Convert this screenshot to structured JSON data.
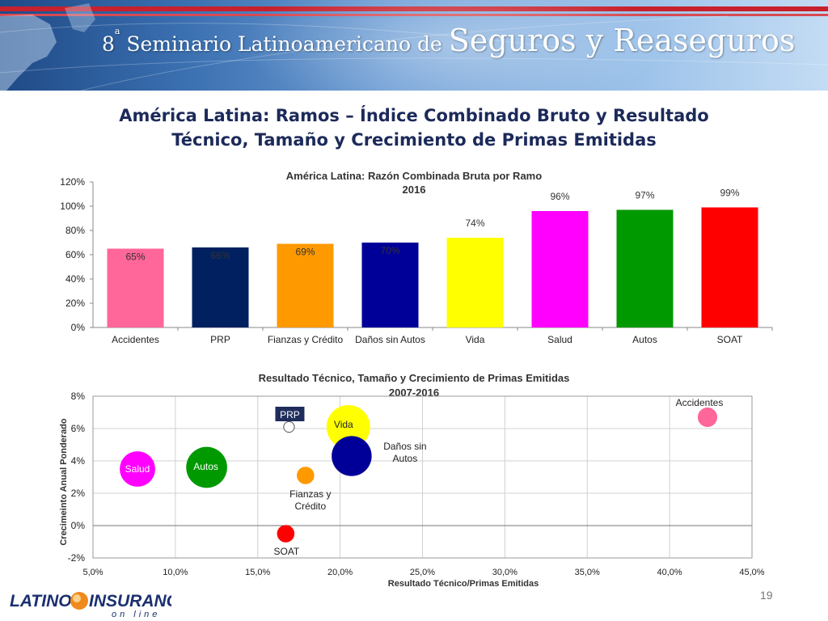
{
  "banner": {
    "title_num": "8",
    "title_sup": "a",
    "title_small": " Seminario Latinoamericano de ",
    "title_big": "Seguros y Reaseguros"
  },
  "slide": {
    "title_line1": "América Latina: Ramos – Índice Combinado Bruto y Resultado",
    "title_line2": "Técnico, Tamaño y Crecimiento de Primas Emitidas",
    "page_number": "19"
  },
  "logo": {
    "text_left": "LATINO",
    "text_right": "INSURANCE",
    "tagline": "on line"
  },
  "chart_data": [
    {
      "type": "bar",
      "title": "América Latina: Razón Combinada Bruta por Ramo",
      "subtitle": "2016",
      "categories": [
        "Accidentes",
        "PRP",
        "Fianzas y Crédito",
        "Daños sin Autos",
        "Vida",
        "Salud",
        "Autos",
        "SOAT"
      ],
      "values": [
        65,
        66,
        69,
        70,
        74,
        96,
        97,
        99
      ],
      "data_labels": [
        "65%",
        "66%",
        "69%",
        "70%",
        "74%",
        "96%",
        "97%",
        "99%"
      ],
      "colors": [
        "#ff6699",
        "#002060",
        "#ff9900",
        "#000099",
        "#ffff00",
        "#ff00ff",
        "#009900",
        "#ff0000"
      ],
      "ylim": [
        0,
        120
      ],
      "yticks": [
        "0%",
        "20%",
        "40%",
        "60%",
        "80%",
        "100%",
        "120%"
      ],
      "xlabel": "",
      "ylabel": "",
      "grid": false
    },
    {
      "type": "scatter",
      "title": "Resultado Técnico, Tamaño y Crecimiento de Primas Emitidas",
      "subtitle": "2007-2016",
      "xlabel": "Resultado Técnico/Primas Emitidas",
      "ylabel": "Crecimeinto Anual Ponderado",
      "xlim": [
        5,
        45
      ],
      "ylim": [
        -2,
        8
      ],
      "xticks": [
        "5,0%",
        "10,0%",
        "15,0%",
        "20,0%",
        "25,0%",
        "30,0%",
        "35,0%",
        "40,0%",
        "45,0%"
      ],
      "yticks": [
        "-2%",
        "0%",
        "2%",
        "4%",
        "6%",
        "8%"
      ],
      "grid": true,
      "bubble_size_unit": "relative premium size",
      "points": [
        {
          "label": "Accidentes",
          "x": 42.3,
          "y": 6.7,
          "size": 1.0,
          "color": "#ff6699"
        },
        {
          "label": "PRP",
          "x": 16.9,
          "y": 6.1,
          "size": 0.3,
          "color": "#ffffff"
        },
        {
          "label": "Vida",
          "x": 20.5,
          "y": 6.1,
          "size": 5.0,
          "color": "#ffff00"
        },
        {
          "label": "Daños sin\nAutos",
          "x": 20.7,
          "y": 4.3,
          "size": 4.2,
          "color": "#000099"
        },
        {
          "label": "Salud",
          "x": 7.7,
          "y": 3.5,
          "size": 3.3,
          "color": "#ff00ff"
        },
        {
          "label": "Autos",
          "x": 11.9,
          "y": 3.6,
          "size": 4.4,
          "color": "#009900"
        },
        {
          "label": "Fianzas y\nCrédito",
          "x": 17.9,
          "y": 3.1,
          "size": 0.8,
          "color": "#ff9900"
        },
        {
          "label": "SOAT",
          "x": 16.7,
          "y": -0.5,
          "size": 0.8,
          "color": "#ff0000"
        }
      ]
    }
  ]
}
